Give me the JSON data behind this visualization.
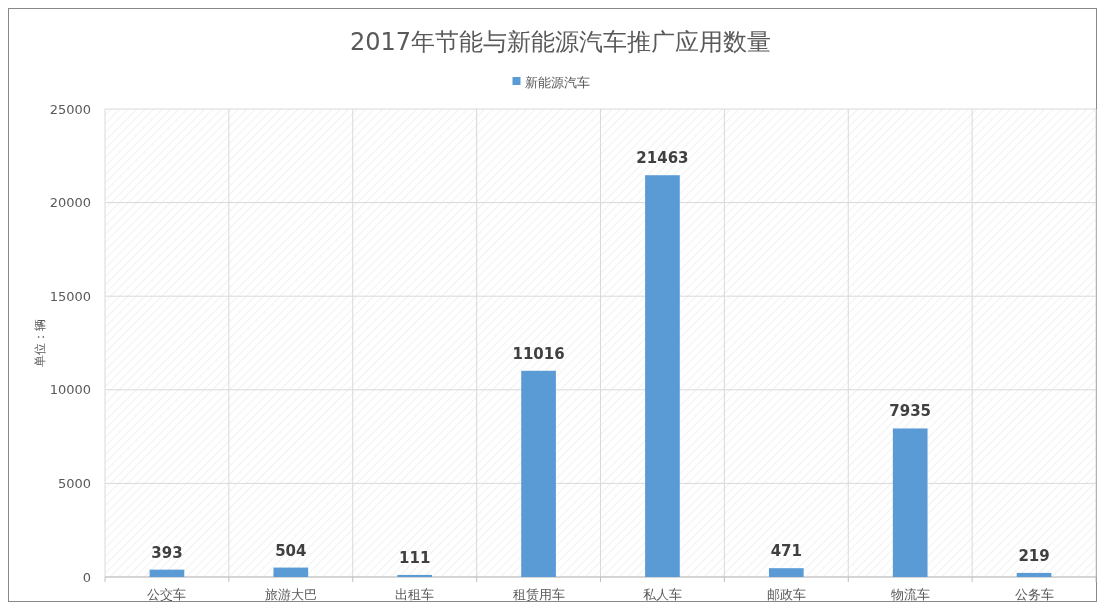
{
  "chart_data": {
    "type": "bar",
    "title": "2017年节能与新能源汽车推广应用数量",
    "ylabel": "单位：辆",
    "categories": [
      "公交车",
      "旅游大巴",
      "出租车",
      "租赁用车",
      "私人车",
      "邮政车",
      "物流车",
      "公务车"
    ],
    "series": [
      {
        "name": "新能源汽车",
        "color": "#5b9bd5",
        "values": [
          393,
          504,
          111,
          11016,
          21463,
          471,
          7935,
          219
        ]
      }
    ],
    "ylim": [
      0,
      25000
    ],
    "yticks": [
      0,
      5000,
      10000,
      15000,
      20000,
      25000
    ],
    "grid": true,
    "legend": "top",
    "data_labels": true
  }
}
